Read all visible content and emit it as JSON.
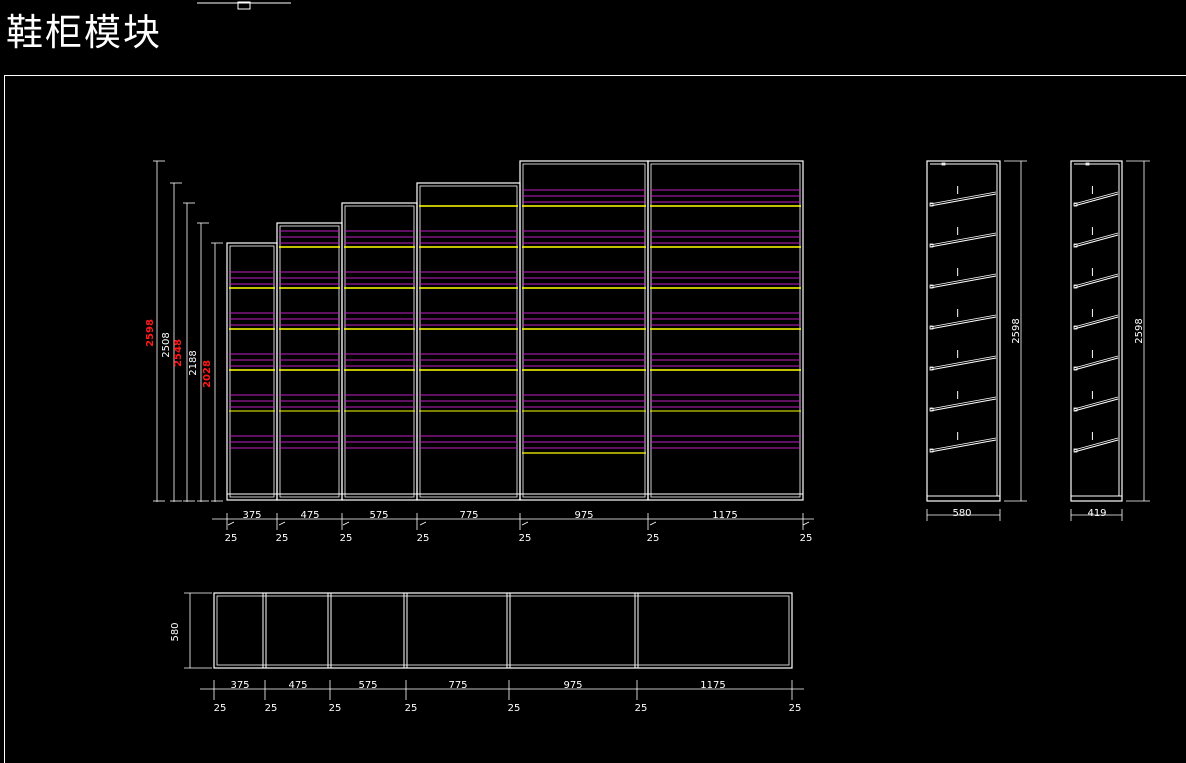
{
  "title": "鞋柜模块",
  "colors": {
    "frame": "#ffffff",
    "shelf_purple": "#c020c0",
    "shelf_yellow": "#ffff00",
    "dim_red": "#ff1a1a"
  },
  "elevation": {
    "widths": [
      "375",
      "475",
      "575",
      "775",
      "975",
      "1175"
    ],
    "gaps": [
      "25",
      "25",
      "25",
      "25",
      "25",
      "25",
      "25"
    ],
    "heights": [
      {
        "value": "2598",
        "color": "red"
      },
      {
        "value": "2508",
        "color": "white"
      },
      {
        "value": "2548",
        "color": "red"
      },
      {
        "value": "2188",
        "color": "white"
      },
      {
        "value": "2028",
        "color": "red"
      }
    ]
  },
  "side_view_a": {
    "width": "580",
    "height": "2598"
  },
  "side_view_b": {
    "width": "419",
    "height": "2598"
  },
  "plan": {
    "depth": "580",
    "widths": [
      "375",
      "475",
      "575",
      "775",
      "975",
      "1175"
    ],
    "gaps": [
      "25",
      "25",
      "25",
      "25",
      "25",
      "25",
      "25"
    ]
  }
}
